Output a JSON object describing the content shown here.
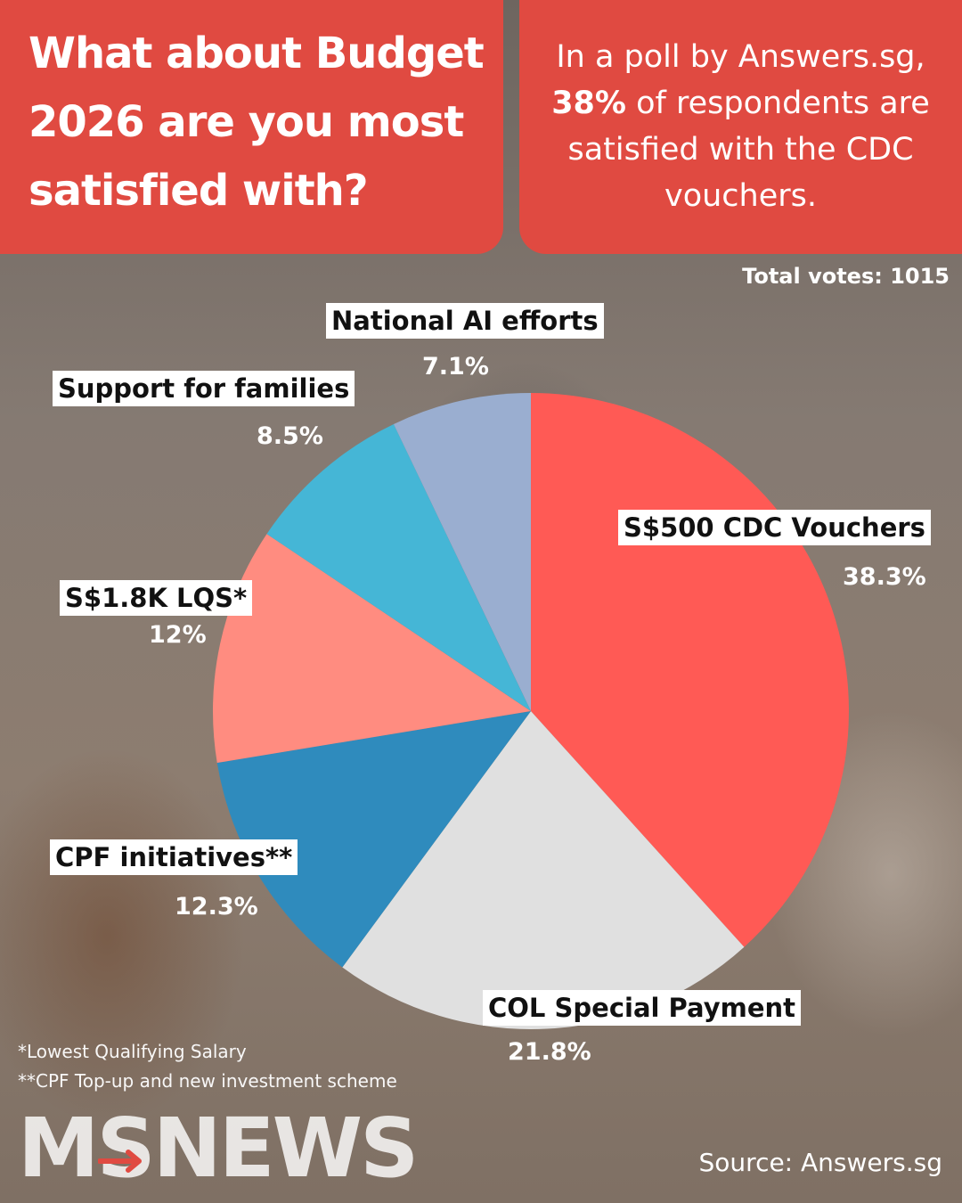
{
  "header": {
    "question": "What about Budget 2026 are you most satisfied with?",
    "summary_before": "In a poll by Answers.sg,",
    "summary_highlight": "38%",
    "summary_after": "of respondents are satisfied with the CDC vouchers."
  },
  "total_votes_text": "Total votes: 1015",
  "chart_data": {
    "type": "pie",
    "title": "What about Budget 2026 are you most satisfied with?",
    "total_votes": 1015,
    "slices": [
      {
        "label": "S$500 CDC Vouchers",
        "value": 38.3,
        "value_text": "38.3%",
        "color": "#ff5a55"
      },
      {
        "label": "COL Special Payment",
        "value": 21.8,
        "value_text": "21.8%",
        "color": "#e0e0e0"
      },
      {
        "label": "CPF initiatives**",
        "value": 12.3,
        "value_text": "12.3%",
        "color": "#2f8bbd"
      },
      {
        "label": "S$1.8K LQS*",
        "value": 12.0,
        "value_text": "12%",
        "color": "#ff8c80"
      },
      {
        "label": "Support for families",
        "value": 8.5,
        "value_text": "8.5%",
        "color": "#45b6d6"
      },
      {
        "label": "National AI efforts",
        "value": 7.1,
        "value_text": "7.1%",
        "color": "#9aaed0"
      }
    ]
  },
  "footnotes": {
    "lqs": "*Lowest Qualifying Salary",
    "cpf": "**CPF Top-up and new investment scheme"
  },
  "logo_text": "MSNEWS",
  "source_text": "Source: Answers.sg"
}
